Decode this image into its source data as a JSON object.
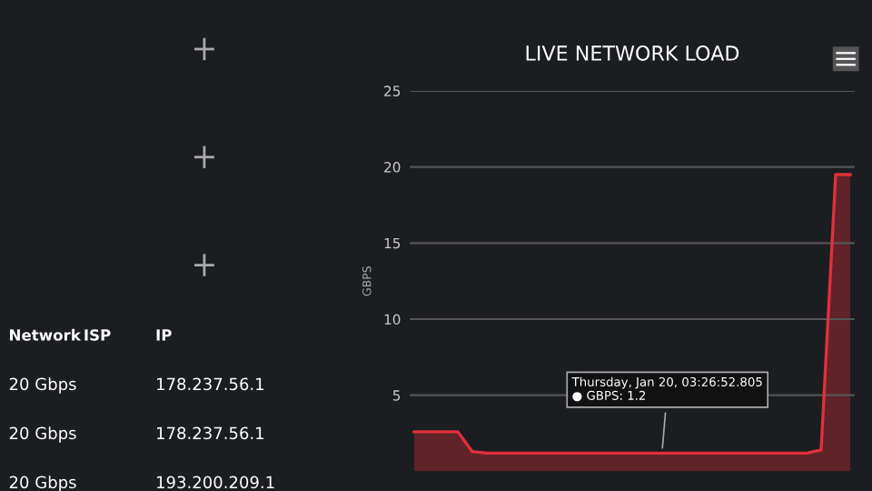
{
  "chart_data": [
    {
      "type": "other",
      "categories": [
        "Network",
        "ISP",
        "IP"
      ],
      "cell_labels": [
        [
          "20 Gbps",
          null,
          "178.237.56.1"
        ],
        [
          "20 Gbps",
          null,
          "178.237.56.1"
        ],
        [
          "20 Gbps",
          null,
          "193.200.209.1"
        ]
      ]
    },
    {
      "type": "area",
      "title": "LIVE NETWORK LOAD",
      "ylabel": "GBPS",
      "categories": [
        null,
        null,
        null,
        null,
        null,
        null,
        null,
        null,
        null,
        null,
        null,
        null,
        null,
        null,
        null,
        null,
        null,
        null,
        null,
        null,
        null,
        null,
        null,
        null,
        null,
        null,
        null,
        null,
        null,
        null,
        null
      ],
      "series": [
        {
          "color": "#e0303c",
          "values": [
            2.6,
            2.6,
            2.6,
            2.6,
            1.3,
            1.2,
            1.2,
            1.2,
            1.2,
            1.2,
            1.2,
            1.2,
            1.2,
            1.2,
            1.2,
            1.2,
            1.2,
            1.2,
            1.2,
            1.2,
            1.2,
            1.2,
            1.2,
            1.2,
            1.2,
            1.2,
            1.2,
            1.2,
            1.4,
            19.5,
            19.5
          ]
        }
      ],
      "ylim": [
        0,
        25
      ],
      "yticks": [
        5,
        10,
        15,
        20,
        25
      ],
      "grid": "y",
      "annotations": [
        {
          "text": "Thursday, Jan 20, 03:26:52.805\n● GBPS: 1.2",
          "y": 1.2
        }
      ]
    }
  ]
}
